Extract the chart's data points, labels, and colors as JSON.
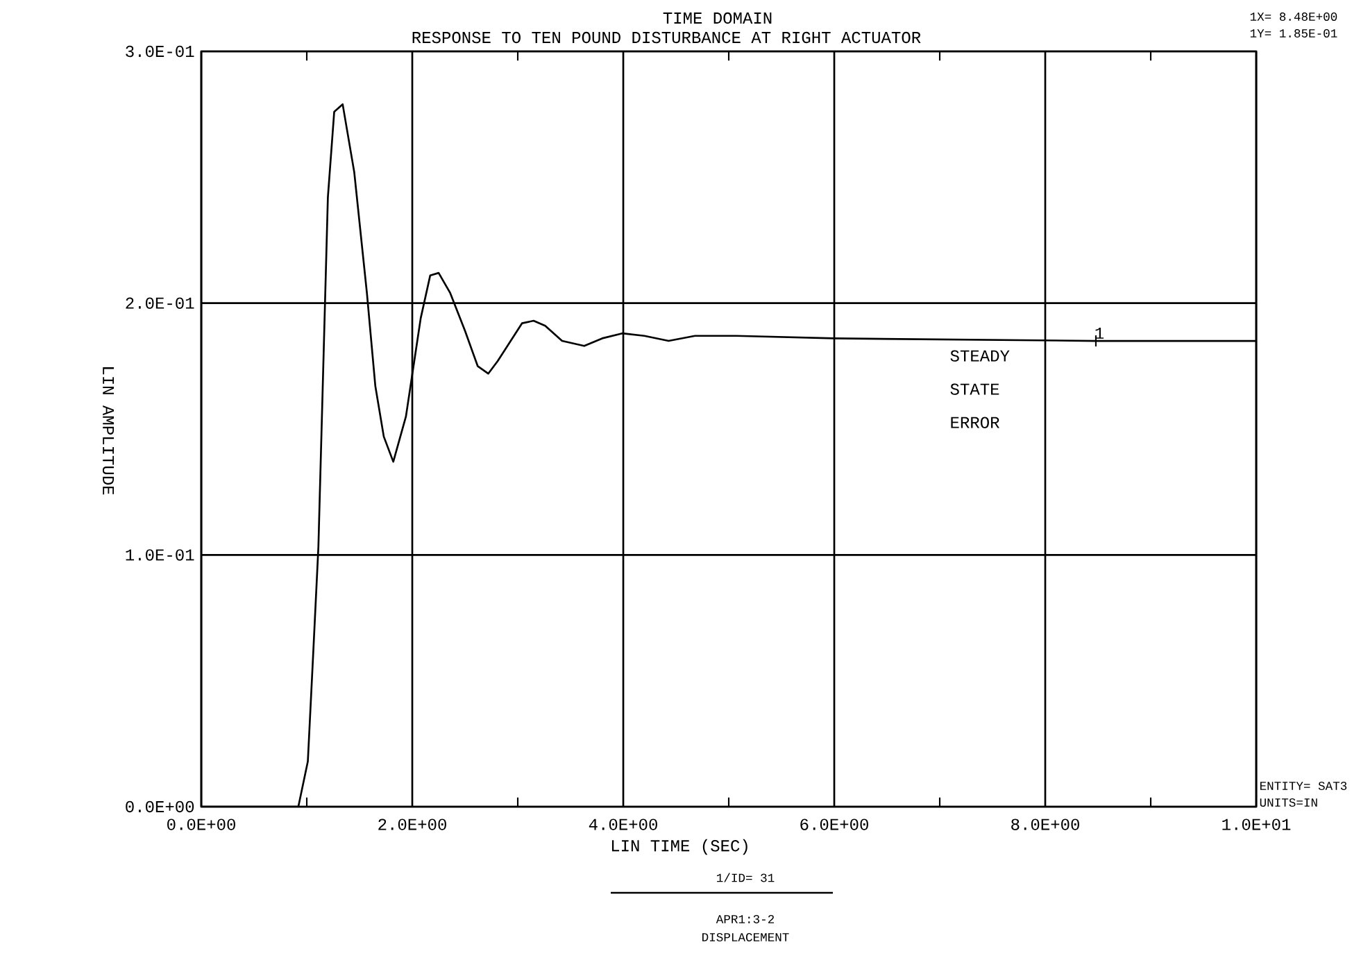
{
  "chart_data": {
    "type": "line",
    "title": "TIME DOMAIN",
    "subtitle": "RESPONSE TO TEN POUND DISTURBANCE AT RIGHT ACTUATOR",
    "xlabel": "LIN TIME (SEC)",
    "ylabel": "LIN AMPLITUDE",
    "x": [
      0,
      0.92,
      1.01,
      1.06,
      1.11,
      1.2,
      1.26,
      1.34,
      1.45,
      1.57,
      1.65,
      1.73,
      1.82,
      1.94,
      2.08,
      2.17,
      2.25,
      2.36,
      2.5,
      2.62,
      2.72,
      2.81,
      3.04,
      3.15,
      3.26,
      3.42,
      3.63,
      3.8,
      3.99,
      4.2,
      4.43,
      4.68,
      5.07,
      6.0,
      8.48,
      10.0
    ],
    "series": [
      {
        "color": "#000000",
        "values": [
          0,
          0,
          0.018,
          0.06,
          0.103,
          0.242,
          0.276,
          0.279,
          0.252,
          0.204,
          0.167,
          0.147,
          0.137,
          0.155,
          0.194,
          0.211,
          0.212,
          0.204,
          0.189,
          0.175,
          0.172,
          0.177,
          0.192,
          0.193,
          0.191,
          0.185,
          0.183,
          0.186,
          0.188,
          0.187,
          0.185,
          0.187,
          0.187,
          0.186,
          0.185,
          0.185
        ]
      }
    ],
    "xlim": [
      0,
      10
    ],
    "ylim": [
      0,
      0.3
    ],
    "xticks": [
      {
        "value": 0,
        "label": "0.0E+00"
      },
      {
        "value": 1,
        "label": null
      },
      {
        "value": 2,
        "label": "2.0E+00"
      },
      {
        "value": 3,
        "label": null
      },
      {
        "value": 4,
        "label": "4.0E+00"
      },
      {
        "value": 5,
        "label": null
      },
      {
        "value": 6,
        "label": "6.0E+00"
      },
      {
        "value": 7,
        "label": null
      },
      {
        "value": 8,
        "label": "8.0E+00"
      },
      {
        "value": 9,
        "label": null
      },
      {
        "value": 10,
        "label": "1.0E+01"
      }
    ],
    "yticks": [
      {
        "value": 0,
        "label": "0.0E+00"
      },
      {
        "value": 0.1,
        "label": "1.0E-01"
      },
      {
        "value": 0.2,
        "label": "2.0E-01"
      },
      {
        "value": 0.3,
        "label": "3.0E-01"
      }
    ],
    "grid": true,
    "legend": false,
    "marker": "none",
    "line_style": "solid",
    "annotations": [
      {
        "text": "1",
        "x": 8.48,
        "y": 0.185
      },
      "STEADY STATE ERROR",
      "1X= 8.48E+00",
      "1Y= 1.85E-01",
      "ENTITY= SAT3",
      "UNITS=IN",
      "1/ID= 31",
      "APR1:3-2",
      "DISPLACEMENT"
    ]
  }
}
